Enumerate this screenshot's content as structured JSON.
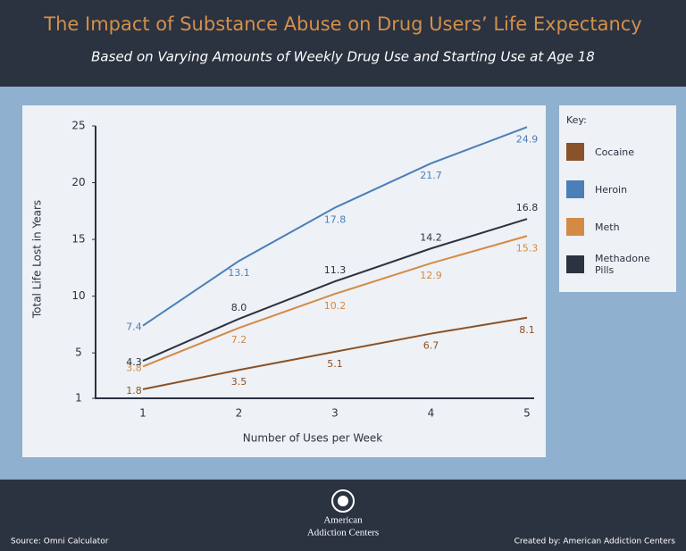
{
  "header": {
    "title": "The Impact of Substance Abuse on Drug Users’ Life Expectancy",
    "subtitle": "Based on Varying Amounts of Weekly Drug Use and Starting Use at Age 18"
  },
  "chart_data": {
    "type": "line",
    "x_label": "Number of Uses per Week",
    "y_label": "Total Life Lost in Years",
    "categories": [
      "1",
      "2",
      "3",
      "4",
      "5"
    ],
    "ylim": [
      1,
      25
    ],
    "yticks": [
      1,
      5,
      10,
      15,
      20,
      25
    ],
    "legend_title": "Key:",
    "legend": "right",
    "series": [
      {
        "name": "Cocaine",
        "color": "#8a5228",
        "values": [
          1.8,
          3.5,
          5.1,
          6.7,
          8.1
        ]
      },
      {
        "name": "Heroin",
        "color": "#4a7fb8",
        "values": [
          7.4,
          13.1,
          17.8,
          21.7,
          24.9
        ]
      },
      {
        "name": "Meth",
        "color": "#d48a45",
        "values": [
          3.8,
          7.2,
          10.2,
          12.9,
          15.3
        ]
      },
      {
        "name": "Methadone Pills",
        "color": "#2b3240",
        "values": [
          4.3,
          8.0,
          11.3,
          14.2,
          16.8
        ],
        "value_labels": [
          "4.3",
          "8.0",
          "11.3",
          "14.2",
          "16.8"
        ]
      }
    ]
  },
  "footer": {
    "logo_line1": "American",
    "logo_line2": "Addiction Centers",
    "source": "Source: Omni Calculator",
    "credit": "Created by: American Addiction Centers"
  }
}
